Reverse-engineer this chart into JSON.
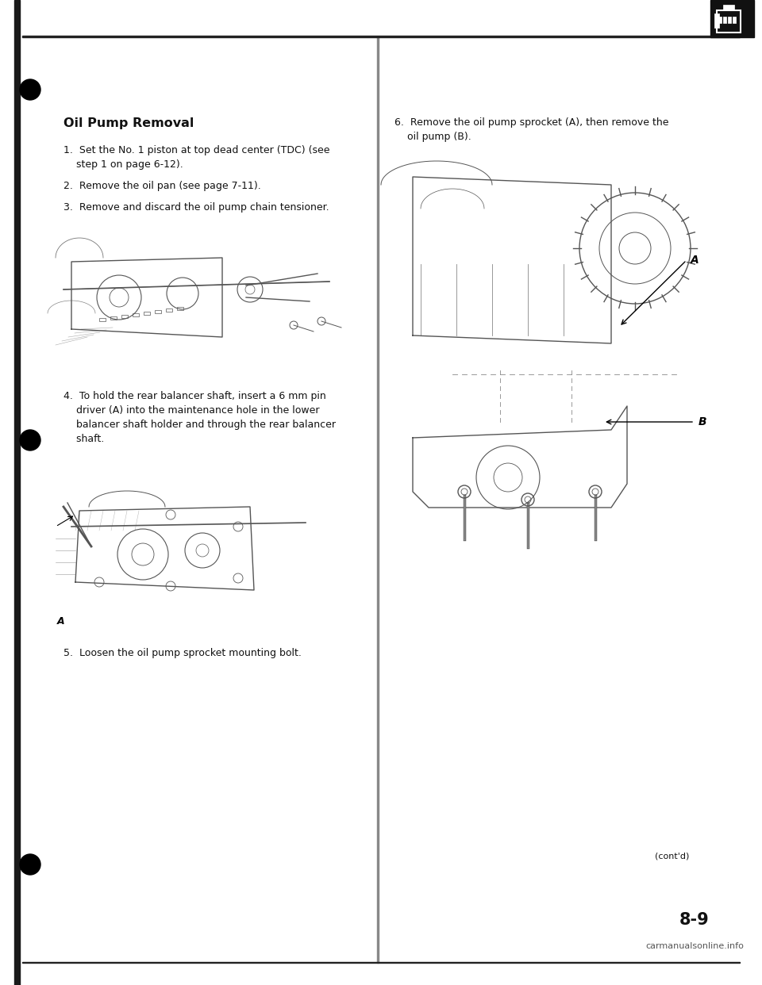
{
  "bg_color": "#ffffff",
  "page_title": "Oil Pump Removal",
  "title_fontsize": 11.5,
  "body_fontsize": 9.0,
  "small_fontsize": 8,
  "step1": "1.  Set the No. 1 piston at top dead center (TDC) (see\n    step 1 on page 6-12).",
  "step2": "2.  Remove the oil pan (see page 7-11).",
  "step3": "3.  Remove and discard the oil pump chain tensioner.",
  "step4": "4.  To hold the rear balancer shaft, insert a 6 mm pin\n    driver (A) into the maintenance hole in the lower\n    balancer shaft holder and through the rear balancer\n    shaft.",
  "step5": "5.  Loosen the oil pump sprocket mounting bolt.",
  "step6": "6.  Remove the oil pump sprocket (A), then remove the\n    oil pump (B).",
  "page_number": "8-9",
  "watermark": "carmanualsonline.info",
  "contd_text": "(cont'd)",
  "left_bar_color": "#1a1a1a",
  "header_line_color": "#222222",
  "bullet_color": "#000000",
  "icon_bg": "#111111",
  "divider_color": "#888888",
  "text_color": "#111111",
  "img_bg": "#ffffff",
  "sketch_color": "#555555"
}
